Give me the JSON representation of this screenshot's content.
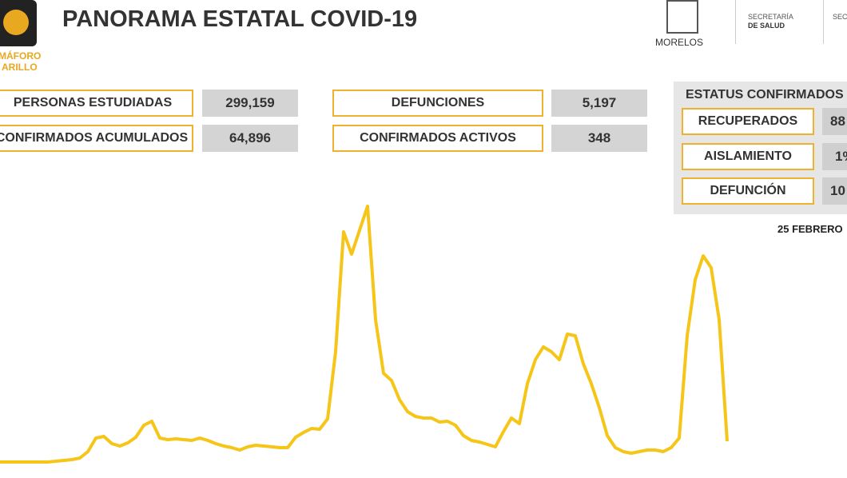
{
  "header": {
    "title": "PANORAMA ESTATAL COVID-19",
    "logo_text_1": "MÁFORO",
    "logo_text_2": "ARILLO",
    "state": "MORELOS",
    "agency_1": "SECRETARÍA",
    "agency_2": "DE SALUD",
    "agency_3": "SECRE"
  },
  "stats": [
    {
      "label": "PERSONAS ESTUDIADAS",
      "value": "299,159"
    },
    {
      "label": "CONFIRMADOS ACUMULADOS",
      "value": "64,896"
    },
    {
      "label": "DEFUNCIONES",
      "value": "5,197"
    },
    {
      "label": "CONFIRMADOS ACTIVOS",
      "value": "348"
    }
  ],
  "status": {
    "title": "ESTATUS CONFIRMADOS",
    "rows": [
      {
        "label": "RECUPERADOS",
        "value": "88"
      },
      {
        "label": "AISLAMIENTO",
        "value": "1%"
      },
      {
        "label": "DEFUNCIÓN",
        "value": "10"
      }
    ]
  },
  "date": "25 FEBRERO",
  "chart_data": {
    "type": "line",
    "color": "#f5c518",
    "ylim": [
      0,
      340
    ],
    "values": [
      0,
      0,
      0,
      0,
      0,
      0,
      0,
      1,
      2,
      3,
      5,
      13,
      30,
      32,
      23,
      20,
      24,
      31,
      46,
      51,
      30,
      28,
      29,
      28,
      27,
      30,
      27,
      23,
      20,
      18,
      15,
      19,
      21,
      20,
      19,
      18,
      18,
      31,
      37,
      42,
      41,
      54,
      138,
      288,
      260,
      290,
      320,
      178,
      111,
      102,
      78,
      63,
      57,
      55,
      55,
      50,
      51,
      46,
      33,
      27,
      25,
      22,
      19,
      38,
      55,
      48,
      98,
      128,
      144,
      138,
      128,
      160,
      158,
      123,
      98,
      68,
      33,
      18,
      13,
      11,
      13,
      15,
      15,
      13,
      18,
      30,
      158,
      228,
      258,
      243,
      178,
      26
    ]
  }
}
